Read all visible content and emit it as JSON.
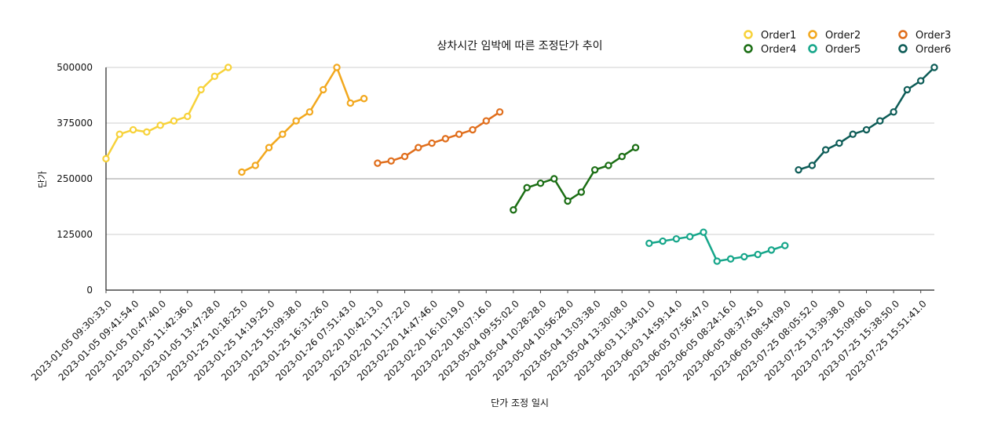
{
  "chart_data": {
    "type": "line",
    "title": "상차시간 임박에 따른 조정단가 추이",
    "xlabel": "단가 조정 일시",
    "ylabel": "단가",
    "ylim": [
      0,
      500000
    ],
    "yticks": [
      0,
      125000,
      250000,
      375000,
      500000
    ],
    "grid": true,
    "legend_position": "top-right",
    "x_tick_labels": [
      "2023-01-05 09:30:33.0",
      "2023-01-05 09:41:54.0",
      "2023-01-05 10:47:40.0",
      "2023-01-05 11:42:36.0",
      "2023-01-05 13:47:28.0",
      "2023-01-25 10:18:25.0",
      "2023-01-25 14:19:25.0",
      "2023-01-25 15:09:38.0",
      "2023-01-25 16:31:26.0",
      "2023-01-26 07:51:43.0",
      "2023-02-20 10:42:13.0",
      "2023-02-20 11:17:22.0",
      "2023-02-20 14:47:46.0",
      "2023-02-20 16:10:19.0",
      "2023-02-20 18:07:16.0",
      "2023-05-04 09:55:02.0",
      "2023-05-04 10:28:28.0",
      "2023-05-04 10:56:28.0",
      "2023-05-04 13:03:38.0",
      "2023-05-04 13:30:08.0",
      "2023-06-03 11:34:01.0",
      "2023-06-03 14:59:14.0",
      "2023-06-05 07:56:47.0",
      "2023-06-05 08:24:16.0",
      "2023-06-05 08:37:45.0",
      "2023-06-05 08:54:09.0",
      "2023-07-25 08:05:52.0",
      "2023-07-25 13:39:38.0",
      "2023-07-25 15:09:06.0",
      "2023-07-25 15:38:50.0",
      "2023-07-25 15:51:41.0"
    ],
    "series": [
      {
        "name": "Order1",
        "color": "#f7d23a",
        "start_index": 0,
        "values": [
          295000,
          350000,
          360000,
          355000,
          370000,
          380000,
          390000,
          450000,
          480000,
          500000
        ]
      },
      {
        "name": "Order2",
        "color": "#f2a81e",
        "start_index": 10,
        "values": [
          265000,
          280000,
          320000,
          350000,
          380000,
          400000,
          450000,
          500000,
          420000,
          430000
        ]
      },
      {
        "name": "Order3",
        "color": "#e06e1c",
        "start_index": 20,
        "values": [
          285000,
          290000,
          300000,
          320000,
          330000,
          340000,
          350000,
          360000,
          380000,
          400000
        ]
      },
      {
        "name": "Order4",
        "color": "#1b6e14",
        "start_index": 30,
        "values": [
          180000,
          230000,
          240000,
          250000,
          200000,
          220000,
          270000,
          280000,
          300000,
          320000
        ]
      },
      {
        "name": "Order5",
        "color": "#16a68a",
        "start_index": 40,
        "values": [
          105000,
          110000,
          115000,
          120000,
          130000,
          65000,
          70000,
          75000,
          80000,
          90000,
          100000
        ]
      },
      {
        "name": "Order6",
        "color": "#0d5c57",
        "start_index": 51,
        "values": [
          270000,
          280000,
          315000,
          330000,
          350000,
          360000,
          380000,
          400000,
          450000,
          470000,
          500000
        ]
      }
    ]
  }
}
